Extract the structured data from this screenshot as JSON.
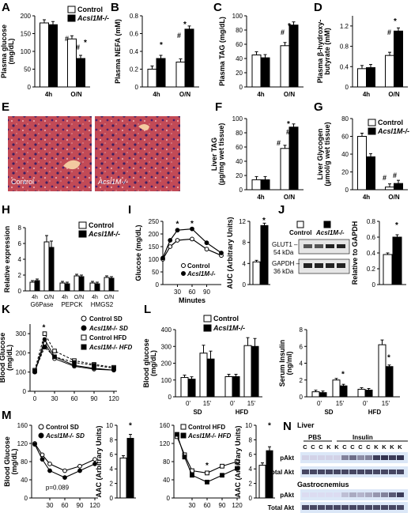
{
  "panels": {
    "A": {
      "letter": "A",
      "ylabel": "Plasma glucose (mg/dL)",
      "yticks": [
        "0",
        "50",
        "100",
        "150",
        "200"
      ],
      "xticks": [
        "4h",
        "O/N"
      ],
      "legend": [
        "Control",
        "Acsl1M-/-"
      ],
      "annotations": [
        "#",
        "#",
        "*"
      ]
    },
    "B": {
      "letter": "B",
      "ylabel": "Plasma NEFA (mM)",
      "yticks": [
        "0",
        "0.2",
        "0.4",
        "0.6",
        "0.8"
      ],
      "xticks": [
        "4h",
        "O/N"
      ],
      "annotations": [
        "*",
        "#",
        "*"
      ]
    },
    "C": {
      "letter": "C",
      "ylabel": "Plasma TAG (mg/dL)",
      "yticks": [
        "0",
        "20",
        "40",
        "60",
        "80",
        "100"
      ],
      "xticks": [
        "4h",
        "O/N"
      ],
      "annotations": [
        "#",
        "*"
      ]
    },
    "D": {
      "letter": "D",
      "ylabel": "Plasma β-hydroxy-butyrate (mM)",
      "yticks": [
        "0",
        "0.4",
        "0.8",
        "1.2"
      ],
      "xticks": [
        "4h",
        "O/N"
      ],
      "annotations": [
        "#",
        "*"
      ]
    },
    "E": {
      "letter": "E",
      "image_labels": [
        "Control",
        "Acsl1M-/-"
      ]
    },
    "F": {
      "letter": "F",
      "ylabel": "Liver TAG (µg/mg wet tissue)",
      "yticks": [
        "0",
        "20",
        "40",
        "60",
        "80",
        "100"
      ],
      "xticks": [
        "4h",
        "O/N"
      ],
      "annotations": [
        "#",
        "*",
        "#"
      ]
    },
    "G": {
      "letter": "G",
      "ylabel": "Liver Glycogen (µmol/g wet tissue)",
      "yticks": [
        "0",
        "20",
        "40",
        "60",
        "80"
      ],
      "xticks": [
        "4h",
        "O/N"
      ],
      "legend": [
        "Control",
        "Acsl1M-/-"
      ],
      "annotations": [
        "#",
        "#"
      ]
    },
    "H": {
      "letter": "H",
      "ylabel": "Relative expression",
      "yticks": [
        "0",
        "2",
        "4",
        "6",
        "8"
      ],
      "xticks": [
        "4h",
        "O/N",
        "4h",
        "O/N",
        "4h",
        "O/N"
      ],
      "groups": [
        "G6Pase",
        "PEPCK",
        "HMGS2"
      ],
      "legend": [
        "Control",
        "Acsl1M-/-"
      ]
    },
    "I": {
      "letter": "I",
      "ylabel": "Glucose (mg/dL)",
      "yticks": [
        "0",
        "50",
        "100",
        "150",
        "200",
        "250"
      ],
      "xticks": [
        "30",
        "60",
        "90"
      ],
      "xlabel": "Minutes",
      "legend": [
        "Control",
        "Acsl1M-/-"
      ],
      "annotations": [
        "*",
        "*"
      ],
      "auc_ylabel": "AUC (Arbitrary Units)",
      "auc_yticks": [
        "0",
        "4",
        "8",
        "12"
      ],
      "auc_annotation": "*"
    },
    "J": {
      "letter": "J",
      "legend": [
        "Control",
        "Acsl1M-/-"
      ],
      "blot_labels": [
        "GLUT1 –",
        "54 kDa",
        "GAPDH –",
        "36 kDa"
      ],
      "ylabel": "Relative to GAPDH",
      "yticks": [
        "0",
        "0.2",
        "0.4",
        "0.6",
        "0.8"
      ],
      "annotation": "*"
    },
    "K": {
      "letter": "K",
      "ylabel": "Blood Glucose (mg/dL)",
      "yticks": [
        "0",
        "100",
        "200",
        "300"
      ],
      "xticks": [
        "0",
        "30",
        "60",
        "90",
        "120"
      ],
      "legend": [
        "Control  SD",
        "Acsl1M-/- SD",
        "Control  HFD",
        "Acsl1M-/- HFD"
      ],
      "annotation": "*"
    },
    "L": {
      "letter": "L",
      "legend": [
        "Control",
        "Acsl1M-/-"
      ],
      "glucose_ylabel": "Blood glucose (mg/dL)",
      "glucose_yticks": [
        "0",
        "100",
        "200",
        "300",
        "400"
      ],
      "xticks": [
        "0'",
        "15'",
        "0'",
        "15'"
      ],
      "groups": [
        "SD",
        "HFD"
      ],
      "insulin_ylabel": "Serum Insulin (ng/ml)",
      "insulin_yticks": [
        "0",
        "2",
        "4",
        "6",
        "8"
      ],
      "insulin_annotations": [
        "*",
        "*"
      ]
    },
    "M": {
      "letter": "M",
      "ylabel": "Blood Glucose (mg/dL)",
      "yticks": [
        "0",
        "40",
        "80",
        "120",
        "160"
      ],
      "xticks": [
        "30",
        "60",
        "90",
        "120"
      ],
      "legend1": [
        "Control  SD",
        "Acsl1M-/- SD"
      ],
      "legend2": [
        "Control  HFD",
        "Acsl1M-/- HFD"
      ],
      "pvalue": "p=0.089",
      "aac_ylabel": "AAC (Arbitrary Units)",
      "aac_yticks": [
        "0",
        "2",
        "4",
        "6",
        "8",
        "10"
      ],
      "annotations": [
        "*",
        "*",
        "*"
      ]
    },
    "N": {
      "letter": "N",
      "tissue1": "Liver",
      "tissue2": "Gastrocnemius",
      "treatments": [
        "PBS",
        "Insulin"
      ],
      "lanes": [
        "C",
        "C",
        "C",
        "K",
        "K",
        "C",
        "C",
        "C",
        "C",
        "K",
        "K",
        "K",
        "K"
      ],
      "rows": [
        "pAkt",
        "Total Akt",
        "pAkt",
        "Total Akt"
      ]
    }
  },
  "chart_data": [
    {
      "panel": "A",
      "type": "bar",
      "categories": [
        "4h",
        "O/N"
      ],
      "series": [
        {
          "name": "Control",
          "values": [
            180,
            135
          ]
        },
        {
          "name": "Acsl1M-/-",
          "values": [
            175,
            80
          ]
        }
      ],
      "ylim": [
        0,
        200
      ]
    },
    {
      "panel": "B",
      "type": "bar",
      "categories": [
        "4h",
        "O/N"
      ],
      "series": [
        {
          "name": "Control",
          "values": [
            0.2,
            0.28
          ]
        },
        {
          "name": "Acsl1M-/-",
          "values": [
            0.32,
            0.65
          ]
        }
      ],
      "ylim": [
        0,
        0.8
      ]
    },
    {
      "panel": "C",
      "type": "bar",
      "categories": [
        "4h",
        "O/N"
      ],
      "series": [
        {
          "name": "Control",
          "values": [
            45,
            58
          ]
        },
        {
          "name": "Acsl1M-/-",
          "values": [
            41,
            87
          ]
        }
      ],
      "ylim": [
        0,
        100
      ]
    },
    {
      "panel": "D",
      "type": "bar",
      "categories": [
        "4h",
        "O/N"
      ],
      "series": [
        {
          "name": "Control",
          "values": [
            0.36,
            0.62
          ]
        },
        {
          "name": "Acsl1M-/-",
          "values": [
            0.38,
            1.1
          ]
        }
      ],
      "ylim": [
        0,
        1.4
      ]
    },
    {
      "panel": "F",
      "type": "bar",
      "categories": [
        "4h",
        "O/N"
      ],
      "series": [
        {
          "name": "Control",
          "values": [
            14,
            58
          ]
        },
        {
          "name": "Acsl1M-/-",
          "values": [
            14,
            88
          ]
        }
      ],
      "ylim": [
        0,
        100
      ]
    },
    {
      "panel": "G",
      "type": "bar",
      "categories": [
        "4h",
        "O/N"
      ],
      "series": [
        {
          "name": "Control",
          "values": [
            60,
            3
          ]
        },
        {
          "name": "Acsl1M-/-",
          "values": [
            37,
            7
          ]
        }
      ],
      "ylim": [
        0,
        80
      ]
    },
    {
      "panel": "H",
      "type": "bar",
      "categories": [
        "G6Pase 4h",
        "G6Pase O/N",
        "PEPCK 4h",
        "PEPCK O/N",
        "HMGS2 4h",
        "HMGS2 O/N"
      ],
      "series": [
        {
          "name": "Control",
          "values": [
            1.1,
            6.2,
            1.0,
            1.9,
            1.0,
            1.7
          ]
        },
        {
          "name": "Acsl1M-/-",
          "values": [
            1.3,
            5.5,
            0.9,
            1.8,
            0.9,
            1.6
          ]
        }
      ],
      "ylim": [
        0,
        8
      ]
    },
    {
      "panel": "I",
      "type": "line",
      "x": [
        0,
        15,
        30,
        60,
        90,
        120
      ],
      "series": [
        {
          "name": "Control",
          "values": [
            100,
            150,
            175,
            180,
            140,
            115
          ]
        },
        {
          "name": "Acsl1M-/-",
          "values": [
            105,
            175,
            215,
            220,
            165,
            125
          ]
        }
      ],
      "xlabel": "Minutes",
      "ylim": [
        0,
        250
      ]
    },
    {
      "panel": "I-AUC",
      "type": "bar",
      "categories": [
        "Control",
        "Acsl1M-/-"
      ],
      "values": [
        4.3,
        11.2
      ],
      "ylim": [
        0,
        12
      ]
    },
    {
      "panel": "J",
      "type": "bar",
      "categories": [
        "Control",
        "Acsl1M-/-"
      ],
      "values": [
        0.38,
        0.6
      ],
      "ylim": [
        0,
        0.8
      ]
    },
    {
      "panel": "K",
      "type": "line",
      "x": [
        0,
        15,
        30,
        60,
        90,
        120
      ],
      "series": [
        {
          "name": "Control SD",
          "values": [
            100,
            250,
            170,
            130,
            115,
            110
          ]
        },
        {
          "name": "Acsl1M-/- SD",
          "values": [
            100,
            270,
            180,
            135,
            120,
            110
          ]
        },
        {
          "name": "Control HFD",
          "values": [
            110,
            300,
            210,
            160,
            140,
            125
          ]
        },
        {
          "name": "Acsl1M-/- HFD",
          "values": [
            105,
            230,
            180,
            150,
            135,
            120
          ]
        }
      ],
      "ylim": [
        0,
        350
      ]
    },
    {
      "panel": "L-glucose",
      "type": "bar",
      "categories": [
        "SD 0'",
        "SD 15'",
        "HFD 0'",
        "HFD 15'"
      ],
      "series": [
        {
          "name": "Control",
          "values": [
            115,
            260,
            120,
            305
          ]
        },
        {
          "name": "Acsl1M-/-",
          "values": [
            105,
            225,
            120,
            300
          ]
        }
      ],
      "ylim": [
        0,
        400
      ]
    },
    {
      "panel": "L-insulin",
      "type": "bar",
      "categories": [
        "SD 0'",
        "SD 15'",
        "HFD 0'",
        "HFD 15'"
      ],
      "series": [
        {
          "name": "Control",
          "values": [
            0.6,
            2.0,
            0.9,
            6.2
          ]
        },
        {
          "name": "Acsl1M-/-",
          "values": [
            0.5,
            1.3,
            0.8,
            3.6
          ]
        }
      ],
      "ylim": [
        0,
        8
      ]
    },
    {
      "panel": "M-SD",
      "type": "line",
      "x": [
        0,
        15,
        30,
        60,
        90,
        120
      ],
      "series": [
        {
          "name": "Control SD",
          "values": [
            120,
            95,
            75,
            60,
            70,
            85
          ]
        },
        {
          "name": "Acsl1M-/- SD",
          "values": [
            118,
            85,
            60,
            45,
            60,
            75
          ]
        }
      ],
      "ylim": [
        0,
        160
      ]
    },
    {
      "panel": "M-SD-AAC",
      "type": "bar",
      "categories": [
        "Control",
        "Acsl1M-/-"
      ],
      "values": [
        5.5,
        8.2
      ],
      "ylim": [
        0,
        10
      ]
    },
    {
      "panel": "M-HFD",
      "type": "line",
      "x": [
        0,
        15,
        30,
        60,
        90,
        120
      ],
      "series": [
        {
          "name": "Control HFD",
          "values": [
            135,
            95,
            60,
            55,
            70,
            80
          ]
        },
        {
          "name": "Acsl1M-/- HFD",
          "values": [
            140,
            90,
            50,
            35,
            50,
            65
          ]
        }
      ],
      "ylim": [
        0,
        160
      ]
    },
    {
      "panel": "M-HFD-AAC",
      "type": "bar",
      "categories": [
        "Control",
        "Acsl1M-/-"
      ],
      "values": [
        4.5,
        6.5
      ],
      "ylim": [
        0,
        10
      ]
    }
  ]
}
